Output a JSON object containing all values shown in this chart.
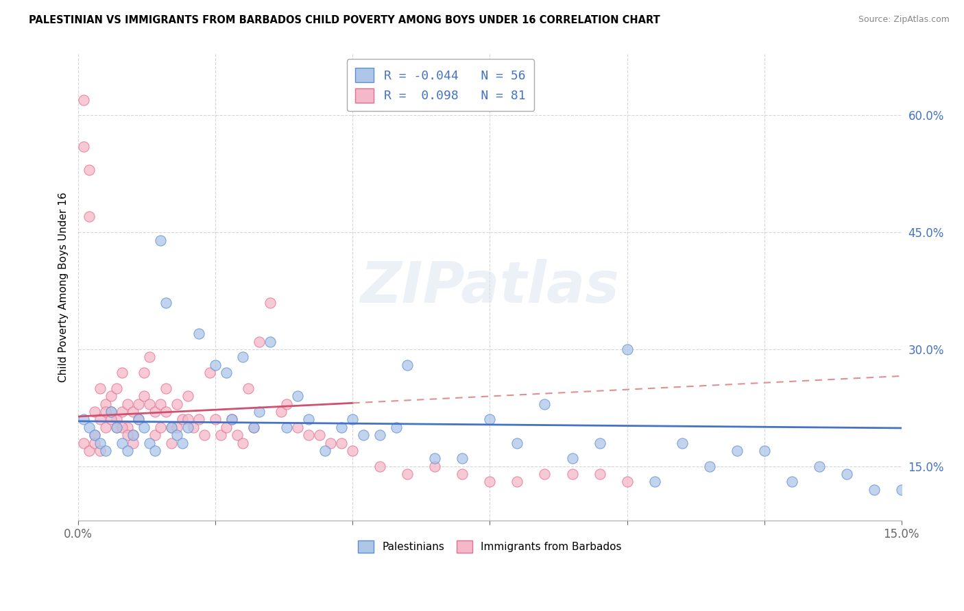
{
  "title": "PALESTINIAN VS IMMIGRANTS FROM BARBADOS CHILD POVERTY AMONG BOYS UNDER 16 CORRELATION CHART",
  "source": "Source: ZipAtlas.com",
  "ylabel": "Child Poverty Among Boys Under 16",
  "xmin": 0.0,
  "xmax": 0.15,
  "ymin": 0.08,
  "ymax": 0.68,
  "yticks": [
    0.15,
    0.3,
    0.45,
    0.6
  ],
  "ytick_labels": [
    "15.0%",
    "30.0%",
    "45.0%",
    "60.0%"
  ],
  "xticks": [
    0.0,
    0.025,
    0.05,
    0.075,
    0.1,
    0.125,
    0.15
  ],
  "blue_R": -0.044,
  "blue_N": 56,
  "pink_R": 0.098,
  "pink_N": 81,
  "blue_color": "#aec6e8",
  "pink_color": "#f5b8c8",
  "blue_edge_color": "#5b8ed6",
  "pink_edge_color": "#e07090",
  "blue_line_color": "#4472c4",
  "pink_line_solid_color": "#d05070",
  "pink_line_dash_color": "#e09090",
  "watermark": "ZIPatlas",
  "legend_text_color": "#4472c4",
  "blue_scatter_x": [
    0.001,
    0.002,
    0.003,
    0.004,
    0.005,
    0.006,
    0.007,
    0.008,
    0.009,
    0.01,
    0.011,
    0.012,
    0.013,
    0.014,
    0.015,
    0.016,
    0.017,
    0.018,
    0.019,
    0.02,
    0.022,
    0.025,
    0.027,
    0.03,
    0.033,
    0.035,
    0.04,
    0.045,
    0.05,
    0.055,
    0.06,
    0.065,
    0.07,
    0.075,
    0.08,
    0.085,
    0.09,
    0.095,
    0.1,
    0.105,
    0.11,
    0.115,
    0.12,
    0.125,
    0.13,
    0.135,
    0.14,
    0.145,
    0.15,
    0.028,
    0.032,
    0.038,
    0.042,
    0.048,
    0.052,
    0.058
  ],
  "blue_scatter_y": [
    0.21,
    0.2,
    0.19,
    0.18,
    0.17,
    0.22,
    0.2,
    0.18,
    0.17,
    0.19,
    0.21,
    0.2,
    0.18,
    0.17,
    0.44,
    0.36,
    0.2,
    0.19,
    0.18,
    0.2,
    0.32,
    0.28,
    0.27,
    0.29,
    0.22,
    0.31,
    0.24,
    0.17,
    0.21,
    0.19,
    0.28,
    0.16,
    0.16,
    0.21,
    0.18,
    0.23,
    0.16,
    0.18,
    0.3,
    0.13,
    0.18,
    0.15,
    0.17,
    0.17,
    0.13,
    0.15,
    0.14,
    0.12,
    0.12,
    0.21,
    0.2,
    0.2,
    0.21,
    0.2,
    0.19,
    0.2
  ],
  "pink_scatter_x": [
    0.001,
    0.001,
    0.002,
    0.002,
    0.003,
    0.003,
    0.004,
    0.004,
    0.005,
    0.005,
    0.006,
    0.006,
    0.007,
    0.007,
    0.008,
    0.008,
    0.009,
    0.009,
    0.01,
    0.01,
    0.011,
    0.011,
    0.012,
    0.012,
    0.013,
    0.013,
    0.014,
    0.014,
    0.015,
    0.015,
    0.016,
    0.016,
    0.017,
    0.017,
    0.018,
    0.018,
    0.019,
    0.02,
    0.02,
    0.021,
    0.022,
    0.023,
    0.024,
    0.025,
    0.026,
    0.027,
    0.028,
    0.029,
    0.03,
    0.031,
    0.032,
    0.033,
    0.035,
    0.037,
    0.038,
    0.04,
    0.042,
    0.044,
    0.046,
    0.048,
    0.05,
    0.055,
    0.06,
    0.065,
    0.07,
    0.075,
    0.08,
    0.085,
    0.09,
    0.095,
    0.1,
    0.001,
    0.002,
    0.003,
    0.004,
    0.005,
    0.006,
    0.007,
    0.008,
    0.009,
    0.01
  ],
  "pink_scatter_y": [
    0.62,
    0.56,
    0.53,
    0.47,
    0.22,
    0.19,
    0.25,
    0.21,
    0.23,
    0.2,
    0.24,
    0.22,
    0.25,
    0.21,
    0.27,
    0.22,
    0.23,
    0.2,
    0.22,
    0.19,
    0.23,
    0.21,
    0.27,
    0.24,
    0.29,
    0.23,
    0.22,
    0.19,
    0.23,
    0.2,
    0.25,
    0.22,
    0.2,
    0.18,
    0.23,
    0.2,
    0.21,
    0.24,
    0.21,
    0.2,
    0.21,
    0.19,
    0.27,
    0.21,
    0.19,
    0.2,
    0.21,
    0.19,
    0.18,
    0.25,
    0.2,
    0.31,
    0.36,
    0.22,
    0.23,
    0.2,
    0.19,
    0.19,
    0.18,
    0.18,
    0.17,
    0.15,
    0.14,
    0.15,
    0.14,
    0.13,
    0.13,
    0.14,
    0.14,
    0.14,
    0.13,
    0.18,
    0.17,
    0.18,
    0.17,
    0.22,
    0.21,
    0.2,
    0.2,
    0.19,
    0.18
  ]
}
